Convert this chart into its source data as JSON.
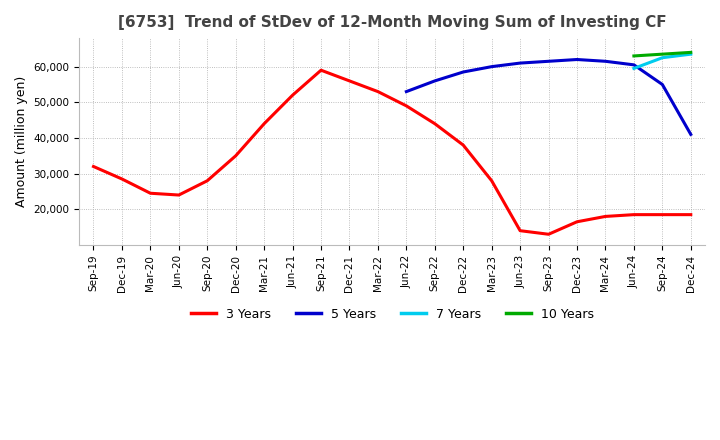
{
  "title": "[6753]  Trend of StDev of 12-Month Moving Sum of Investing CF",
  "ylabel": "Amount (million yen)",
  "legend_labels": [
    "3 Years",
    "5 Years",
    "7 Years",
    "10 Years"
  ],
  "legend_colors": [
    "#ff0000",
    "#0000cc",
    "#00ccee",
    "#00aa00"
  ],
  "x_labels": [
    "Sep-19",
    "Dec-19",
    "Mar-20",
    "Jun-20",
    "Sep-20",
    "Dec-20",
    "Mar-21",
    "Jun-21",
    "Sep-21",
    "Dec-21",
    "Mar-22",
    "Jun-22",
    "Sep-22",
    "Dec-22",
    "Mar-23",
    "Jun-23",
    "Sep-23",
    "Dec-23",
    "Mar-24",
    "Jun-24",
    "Sep-24",
    "Dec-24"
  ],
  "series_3y": [
    32000,
    28500,
    24500,
    24000,
    28000,
    35000,
    44000,
    52000,
    59000,
    56000,
    53000,
    49000,
    44000,
    38000,
    28000,
    14000,
    13000,
    16500,
    18000,
    18500,
    18500,
    18500
  ],
  "series_5y": [
    null,
    null,
    null,
    null,
    null,
    null,
    null,
    null,
    null,
    null,
    null,
    53000,
    56000,
    58500,
    60000,
    61000,
    61500,
    62000,
    61500,
    60500,
    55000,
    41000
  ],
  "series_7y": [
    null,
    null,
    null,
    null,
    null,
    null,
    null,
    null,
    null,
    null,
    null,
    null,
    null,
    null,
    null,
    null,
    null,
    null,
    null,
    59500,
    62500,
    63500
  ],
  "series_10y": [
    null,
    null,
    null,
    null,
    null,
    null,
    null,
    null,
    null,
    null,
    null,
    null,
    null,
    null,
    null,
    null,
    null,
    null,
    null,
    63000,
    63500,
    64000
  ],
  "ylim": [
    10000,
    68000
  ],
  "yticks": [
    20000,
    30000,
    40000,
    50000,
    60000
  ],
  "background_color": "#ffffff",
  "grid_color": "#aaaaaa"
}
